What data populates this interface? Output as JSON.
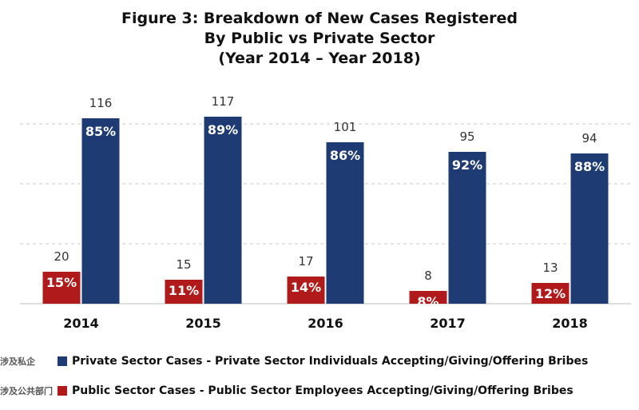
{
  "title_lines": [
    "Figure 3: Breakdown of New Cases Registered",
    "By Public vs Private Sector",
    "(Year 2014 – Year 2018)"
  ],
  "colors": {
    "private": "#1f3b73",
    "public": "#b01a1a",
    "grid": "#c8c8c8",
    "axis": "#bdbdbd"
  },
  "legend": [
    {
      "cn": "涉及私企",
      "label": "Private Sector Cases - Private Sector Individuals Accepting/Giving/Offering Bribes",
      "color": "#1f3b73"
    },
    {
      "cn": "涉及公共部门",
      "label": "Public Sector Cases - Public Sector Employees Accepting/Giving/Offering Bribes",
      "color": "#b01a1a"
    }
  ],
  "chart_data": {
    "type": "bar",
    "title": "Figure 3: Breakdown of New Cases Registered By Public vs Private Sector (Year 2014 – Year 2018)",
    "categories": [
      "2014",
      "2015",
      "2016",
      "2017",
      "2018"
    ],
    "series": [
      {
        "name": "Public Sector Cases - Public Sector Employees Accepting/Giving/Offering Bribes",
        "values": [
          20,
          15,
          17,
          8,
          13
        ],
        "percent_labels": [
          "15%",
          "11%",
          "14%",
          "8%",
          "12%"
        ]
      },
      {
        "name": "Private Sector Cases - Private Sector Individuals Accepting/Giving/Offering Bribes",
        "values": [
          116,
          117,
          101,
          95,
          94
        ],
        "percent_labels": [
          "85%",
          "89%",
          "86%",
          "92%",
          "88%"
        ]
      }
    ],
    "ylim": [
      0,
      125
    ],
    "grid": true,
    "legend_position": "bottom"
  }
}
